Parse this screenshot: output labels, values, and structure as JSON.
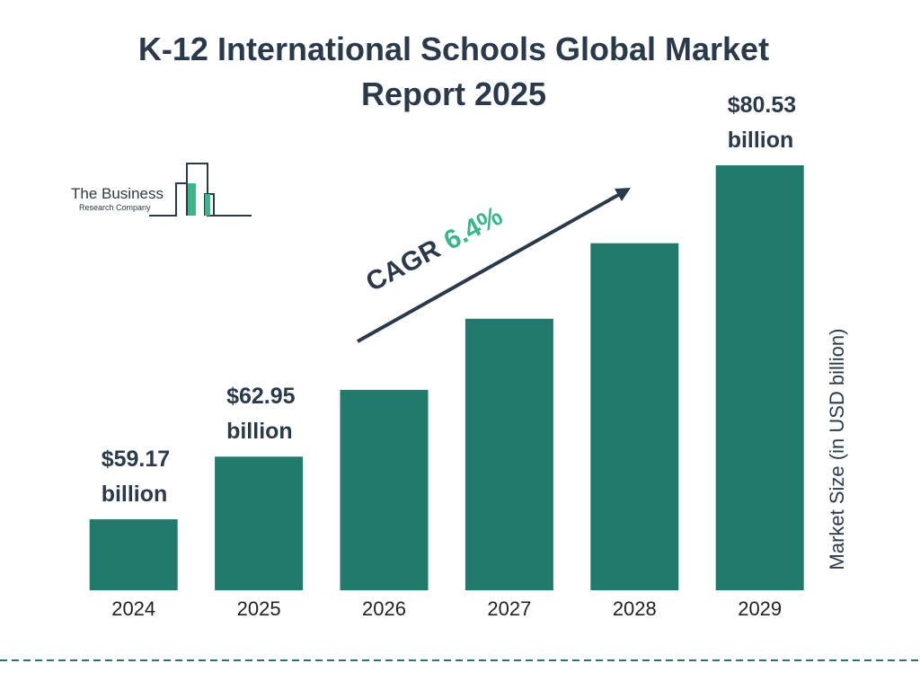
{
  "chart_data": {
    "type": "bar",
    "title": "K-12 International Schools Global Market Report 2025",
    "categories": [
      "2024",
      "2025",
      "2026",
      "2027",
      "2028",
      "2029"
    ],
    "values": [
      59.17,
      62.95,
      66.98,
      71.27,
      75.83,
      80.53
    ],
    "value_labels": [
      "$59.17 billion",
      "$62.95 billion",
      null,
      null,
      null,
      "$80.53 billion"
    ],
    "color": "#217a6b",
    "y_axis_label": "Market Size (in USD billion)",
    "annotation": {
      "label": "CAGR",
      "value": "6.4%"
    },
    "logo": {
      "line1": "The Business",
      "line2": "Research Company"
    }
  }
}
